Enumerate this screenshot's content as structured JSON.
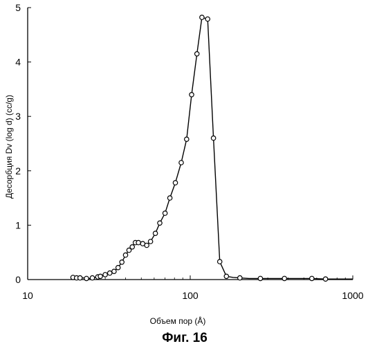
{
  "chart_data": {
    "type": "scatter",
    "title": "",
    "caption": "Фиг. 16",
    "xlabel": "Объем пор (Å)",
    "ylabel": "Десорбция Dv (log d) (cc/g)",
    "x_scale": "log",
    "xlim": [
      10,
      1000
    ],
    "ylim": [
      0,
      5
    ],
    "x_ticks": [
      10,
      100,
      1000
    ],
    "x_tick_labels": [
      "10",
      "100",
      "1000"
    ],
    "y_ticks": [
      0,
      1,
      2,
      3,
      4,
      5
    ],
    "y_tick_labels": [
      "0",
      "1",
      "2",
      "3",
      "4",
      "5"
    ],
    "grid": false,
    "legend": "none",
    "series": [
      {
        "x": [
          19,
          20,
          21,
          22,
          23,
          24,
          25,
          26,
          27,
          28,
          30,
          32,
          34,
          36,
          38,
          40,
          42,
          44,
          46,
          48,
          51,
          54,
          57,
          61,
          65,
          70,
          75,
          81,
          88,
          95,
          102,
          110,
          118,
          128,
          139,
          152,
          167,
          184,
          202,
          230,
          270,
          320,
          380,
          460,
          560,
          680,
          830,
          1000
        ],
        "y": [
          0.04,
          0.03,
          0.03,
          0.03,
          0.02,
          0.02,
          0.03,
          0.04,
          0.05,
          0.06,
          0.09,
          0.12,
          0.15,
          0.22,
          0.32,
          0.45,
          0.54,
          0.6,
          0.68,
          0.68,
          0.66,
          0.63,
          0.7,
          0.85,
          1.04,
          1.22,
          1.5,
          1.78,
          2.15,
          2.58,
          3.4,
          4.15,
          4.82,
          4.79,
          2.6,
          0.33,
          0.06,
          0.04,
          0.03,
          0.02,
          0.02,
          0.02,
          0.02,
          0.02,
          0.02,
          0.01,
          0.01,
          0.01
        ],
        "markers": [
          0,
          1,
          2,
          4,
          6,
          8,
          9,
          10,
          11,
          12,
          13,
          14,
          15,
          16,
          17,
          18,
          19,
          20,
          21,
          22,
          23,
          24,
          25,
          26,
          27,
          28,
          29,
          30,
          31,
          32,
          33,
          34,
          35,
          36,
          38,
          40,
          42,
          44,
          45
        ],
        "color": "#000000"
      }
    ]
  }
}
